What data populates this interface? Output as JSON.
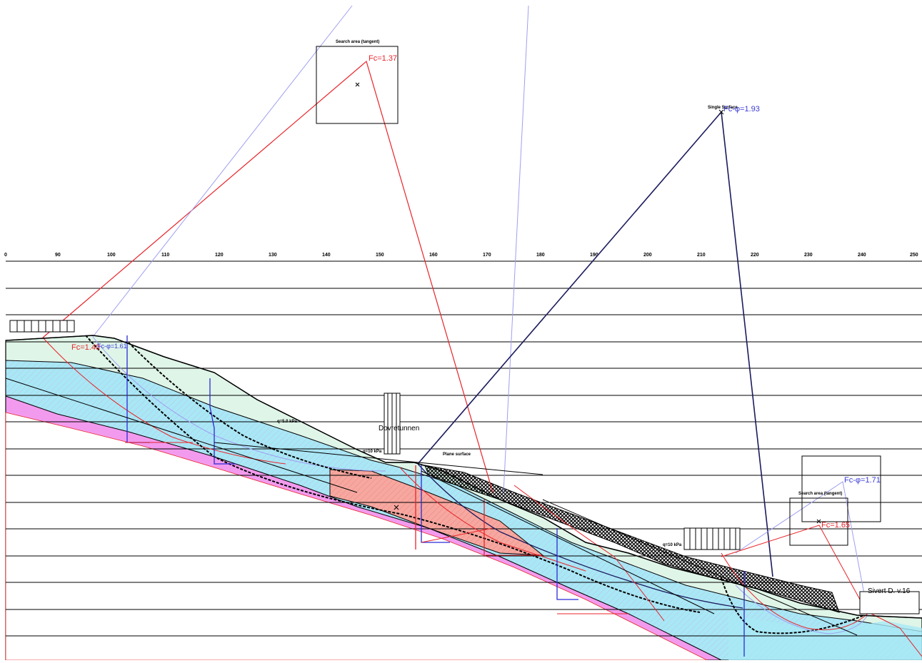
{
  "axis": {
    "ticks": [
      "0",
      "90",
      "100",
      "110",
      "120",
      "130",
      "140",
      "150",
      "160",
      "170",
      "180",
      "190",
      "200",
      "210",
      "220",
      "230",
      "240",
      "250"
    ]
  },
  "labels": {
    "search_area_top": "Search area (tangent)",
    "search_area_right": "Search area (tangent)",
    "single_surface": "Single Surface",
    "plane_surface": "Plane surface",
    "house_mid": "Dovretunnen",
    "house_right": "Sivert D. v.16",
    "load_mid": "q=10 kPa",
    "load_upper": "q=5.0 kPa",
    "load_right": "q=10 kPa"
  },
  "factors": {
    "fc_top": "Fc=1.37",
    "fc_left": "Fc=1.40",
    "fcphi_left": "Fc-φ=1.61",
    "fcphi_single": "Fc-φ=1.93",
    "fcphi_right": "Fc-φ=1.71",
    "fc_right": "Fc=1.65"
  },
  "colors": {
    "soil_cyan": "#a8e8f5",
    "soil_green": "#dff5e8",
    "soil_magenta": "#f29bee",
    "soil_salmon": "#f6a8a0",
    "line_red": "#e8242a",
    "line_lavender": "#9f9ff0",
    "line_navy": "#1b1b5e",
    "line_blue": "#2a2ad6"
  }
}
